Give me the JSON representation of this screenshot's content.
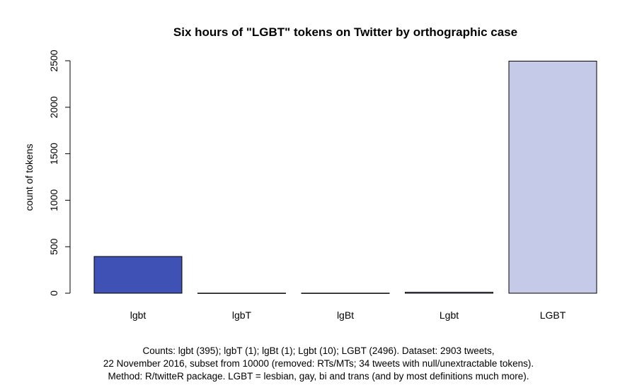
{
  "chart_data": {
    "type": "bar",
    "title": "Six hours of \"LGBT\" tokens on Twitter by orthographic case",
    "xlabel": "",
    "ylabel": "count of tokens",
    "categories": [
      "lgbt",
      "lgbT",
      "lgBt",
      "Lgbt",
      "LGBT"
    ],
    "values": [
      395,
      1,
      1,
      10,
      2496
    ],
    "colors": [
      "#3f51b5",
      "#5c6bc0",
      "#7986cb",
      "#9fa8da",
      "#c5cae9"
    ],
    "ylim": [
      0,
      2500
    ],
    "yticks": [
      0,
      500,
      1000,
      1500,
      2000,
      2500
    ],
    "grid": false,
    "legend": "none"
  },
  "caption": {
    "line1": "Counts: lgbt (395); lgbT (1); lgBt (1); Lgbt (10); LGBT (2496). Dataset: 2903 tweets,",
    "line2": "22 November 2016, subset from 10000 (removed: RTs/MTs; 34 tweets with null/unextractable tokens).",
    "line3": "Method: R/twitteR package. LGBT = lesbian, gay, bi and trans (and by most definitions much more)."
  }
}
